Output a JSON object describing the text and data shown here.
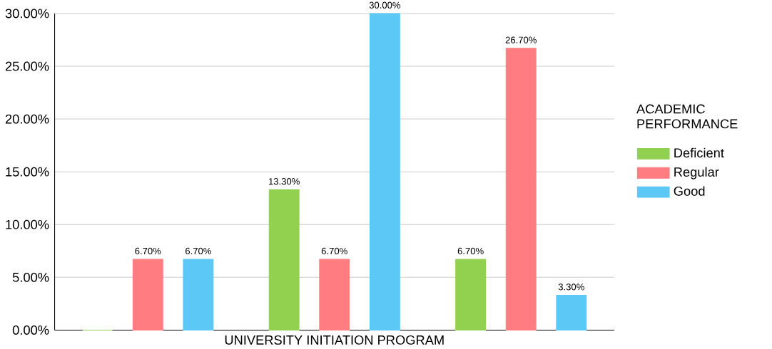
{
  "chart_data": {
    "type": "bar",
    "xlabel": "UNIVERSITY INITIATION PROGRAM",
    "legend_title": "ACADEMIC PERFORMANCE",
    "categories": [
      null,
      null,
      null
    ],
    "series": [
      {
        "name": "Deficient",
        "color": "#92d050",
        "values": [
          0,
          13.3,
          6.7
        ],
        "value_labels": [
          null,
          "13.30%",
          "6.70%"
        ]
      },
      {
        "name": "Regular",
        "color": "#ff7c80",
        "values": [
          6.7,
          6.7,
          26.7
        ],
        "value_labels": [
          "6.70%",
          "6.70%",
          "26.70%"
        ]
      },
      {
        "name": "Good",
        "color": "#5bc8f5",
        "values": [
          6.7,
          30,
          3.3
        ],
        "value_labels": [
          "6.70%",
          "30.00%",
          "3.30%"
        ]
      }
    ],
    "ylim": [
      0,
      30
    ],
    "yticks": [
      {
        "value": 0,
        "label": "0.00%"
      },
      {
        "value": 5,
        "label": "5.00%"
      },
      {
        "value": 10,
        "label": "10.00%"
      },
      {
        "value": 15,
        "label": "15.00%"
      },
      {
        "value": 20,
        "label": "20.00%"
      },
      {
        "value": 25,
        "label": "25.00%"
      },
      {
        "value": 30,
        "label": "30.00%"
      }
    ],
    "grid": "y",
    "legend": "right"
  }
}
